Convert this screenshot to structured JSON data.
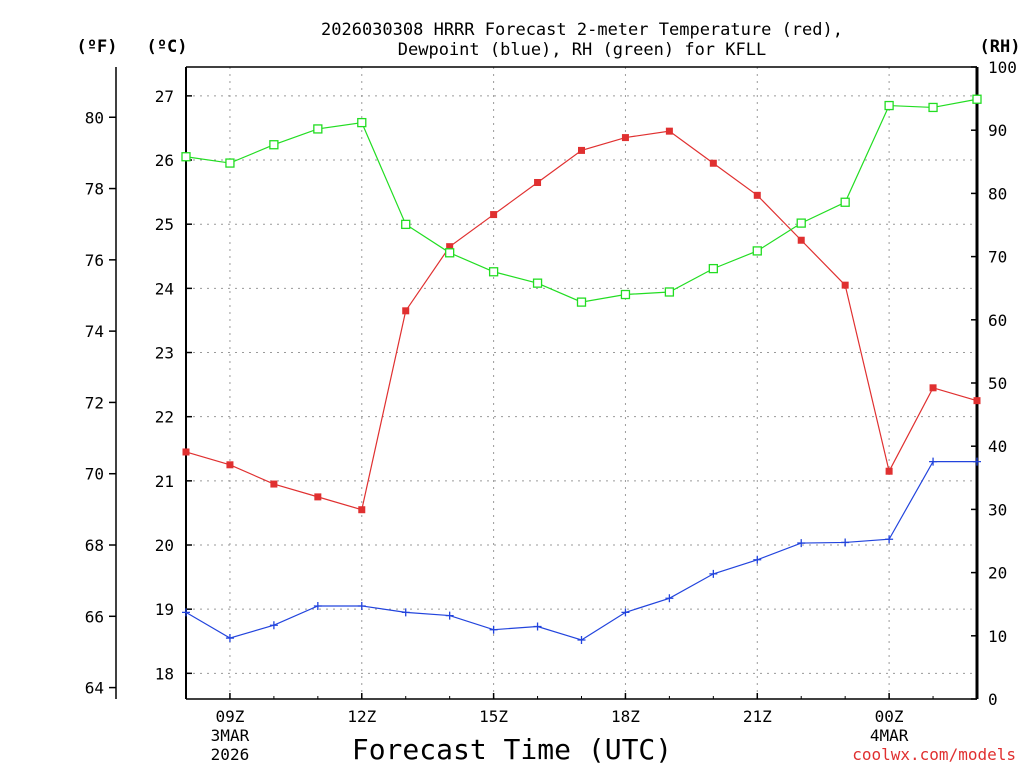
{
  "chart_data": {
    "type": "line",
    "title_line1": "2026030308 HRRR Forecast 2-meter Temperature (red),",
    "title_line2": "Dewpoint (blue), RH (green) for KFLL",
    "xlabel": "Forecast Time (UTC)",
    "credit": "coolwx.com/models",
    "unit_f": "(ºF)",
    "unit_c": "(ºC)",
    "unit_rh": "(RH)",
    "x_hours": [
      8,
      9,
      10,
      11,
      12,
      13,
      14,
      15,
      16,
      17,
      18,
      19,
      20,
      21,
      22,
      23,
      24,
      25,
      26
    ],
    "xlim": [
      8,
      26
    ],
    "x_ticks": [
      {
        "hour": 9,
        "label": "09Z",
        "line2": "3MAR",
        "line3": "2026"
      },
      {
        "hour": 12,
        "label": "12Z",
        "line2": "",
        "line3": ""
      },
      {
        "hour": 15,
        "label": "15Z",
        "line2": "",
        "line3": ""
      },
      {
        "hour": 18,
        "label": "18Z",
        "line2": "",
        "line3": ""
      },
      {
        "hour": 21,
        "label": "21Z",
        "line2": "",
        "line3": ""
      },
      {
        "hour": 24,
        "label": "00Z",
        "line2": "4MAR",
        "line3": ""
      }
    ],
    "celsius_ylim": [
      17.6,
      27.45
    ],
    "celsius_ticks": [
      "18",
      "19",
      "20",
      "21",
      "22",
      "23",
      "24",
      "25",
      "26",
      "27"
    ],
    "fahrenheit_ticks": [
      "64",
      "66",
      "68",
      "70",
      "72",
      "74",
      "76",
      "78",
      "80"
    ],
    "rh_ylim": [
      0,
      100
    ],
    "rh_ticks": [
      "0",
      "10",
      "20",
      "30",
      "40",
      "50",
      "60",
      "70",
      "80",
      "90",
      "100"
    ],
    "series": [
      {
        "name": "2-meter Temperature",
        "color": "#e03030",
        "marker": "filled-square",
        "values_c": [
          21.45,
          21.25,
          20.95,
          20.75,
          20.55,
          23.65,
          24.65,
          25.15,
          25.65,
          26.15,
          26.35,
          26.45,
          25.95,
          25.45,
          24.75,
          24.05,
          21.15,
          22.45,
          22.25
        ]
      },
      {
        "name": "Dewpoint",
        "color": "#2244dd",
        "marker": "plus",
        "values_c": [
          18.95,
          18.55,
          18.75,
          19.05,
          19.05,
          18.95,
          18.9,
          18.68,
          18.73,
          18.52,
          18.95,
          19.17,
          19.55,
          19.77,
          20.03,
          20.04,
          20.09,
          21.3,
          21.3
        ]
      },
      {
        "name": "RH",
        "color": "#22dd22",
        "marker": "open-square",
        "values_rh": [
          85.8,
          84.8,
          87.7,
          90.2,
          91.2,
          75.1,
          70.6,
          67.6,
          65.8,
          62.8,
          64.0,
          64.4,
          68.1,
          70.9,
          75.3,
          78.6,
          93.9,
          93.6,
          94.9
        ]
      }
    ]
  }
}
